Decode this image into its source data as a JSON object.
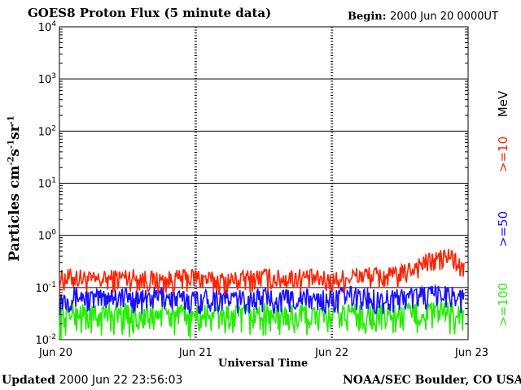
{
  "header": {
    "title": "GOES8 Proton Flux (5 minute data)",
    "begin_label": "Begin:",
    "begin_value": "2000 Jun 20 0000UT"
  },
  "footer": {
    "updated_label": "Updated",
    "updated_value": "2000 Jun 22 23:56:03",
    "credit": "NOAA/SEC Boulder, CO USA"
  },
  "chart_data": {
    "type": "line",
    "title": "GOES8 Proton Flux (5 minute data)",
    "xlabel": "Universal Time",
    "ylabel_main": "Particles cm",
    "ylabel_exp1": "-2",
    "ylabel_s": "s",
    "ylabel_exp2": "-1",
    "ylabel_sr": "sr",
    "ylabel_exp3": "-1",
    "yscale": "log",
    "ylim": [
      0.01,
      10000
    ],
    "yticks": [
      {
        "value": 0.01,
        "base": "10",
        "exp": "-2"
      },
      {
        "value": 0.1,
        "base": "10",
        "exp": "-1"
      },
      {
        "value": 1,
        "base": "10",
        "exp": "0"
      },
      {
        "value": 10,
        "base": "10",
        "exp": "1"
      },
      {
        "value": 100,
        "base": "10",
        "exp": "2"
      },
      {
        "value": 1000,
        "base": "10",
        "exp": "3"
      },
      {
        "value": 10000,
        "base": "10",
        "exp": "4"
      }
    ],
    "xlim": [
      0,
      3
    ],
    "xticks": [
      {
        "value": 0,
        "label": "Jun 20"
      },
      {
        "value": 1,
        "label": "Jun 21"
      },
      {
        "value": 2,
        "label": "Jun 22"
      },
      {
        "value": 3,
        "label": "Jun 23"
      }
    ],
    "grid": true,
    "legend_position": "right",
    "unit_label": "MeV",
    "series": [
      {
        "name": ">=10",
        "color": "#ff2200",
        "x": [
          0.0,
          0.125,
          0.25,
          0.375,
          0.5,
          0.625,
          0.75,
          0.875,
          1.0,
          1.125,
          1.25,
          1.375,
          1.5,
          1.625,
          1.75,
          1.875,
          2.0,
          2.125,
          2.25,
          2.375,
          2.5,
          2.625,
          2.75,
          2.875,
          2.97
        ],
        "y": [
          0.11,
          0.12,
          0.1,
          0.11,
          0.12,
          0.11,
          0.1,
          0.11,
          0.12,
          0.1,
          0.1,
          0.11,
          0.12,
          0.11,
          0.12,
          0.11,
          0.1,
          0.12,
          0.13,
          0.12,
          0.13,
          0.2,
          0.25,
          0.3,
          0.15
        ]
      },
      {
        "name": ">=50",
        "color": "#1a10ff",
        "x": [
          0.0,
          0.125,
          0.25,
          0.375,
          0.5,
          0.625,
          0.75,
          0.875,
          1.0,
          1.125,
          1.25,
          1.375,
          1.5,
          1.625,
          1.75,
          1.875,
          2.0,
          2.125,
          2.25,
          2.375,
          2.5,
          2.625,
          2.75,
          2.875,
          2.97
        ],
        "y": [
          0.05,
          0.06,
          0.05,
          0.06,
          0.055,
          0.05,
          0.06,
          0.05,
          0.05,
          0.055,
          0.05,
          0.05,
          0.055,
          0.05,
          0.055,
          0.05,
          0.05,
          0.06,
          0.055,
          0.05,
          0.055,
          0.06,
          0.06,
          0.065,
          0.05
        ]
      },
      {
        "name": ">=100",
        "color": "#22ee00",
        "x": [
          0.0,
          0.125,
          0.25,
          0.375,
          0.5,
          0.625,
          0.75,
          0.875,
          1.0,
          1.125,
          1.25,
          1.375,
          1.5,
          1.625,
          1.75,
          1.875,
          2.0,
          2.125,
          2.25,
          2.375,
          2.5,
          2.625,
          2.75,
          2.875,
          2.97
        ],
        "y": [
          0.025,
          0.03,
          0.025,
          0.03,
          0.028,
          0.025,
          0.03,
          0.026,
          0.025,
          0.028,
          0.025,
          0.026,
          0.028,
          0.025,
          0.027,
          0.026,
          0.025,
          0.03,
          0.028,
          0.026,
          0.028,
          0.03,
          0.03,
          0.03,
          0.026
        ]
      }
    ]
  }
}
